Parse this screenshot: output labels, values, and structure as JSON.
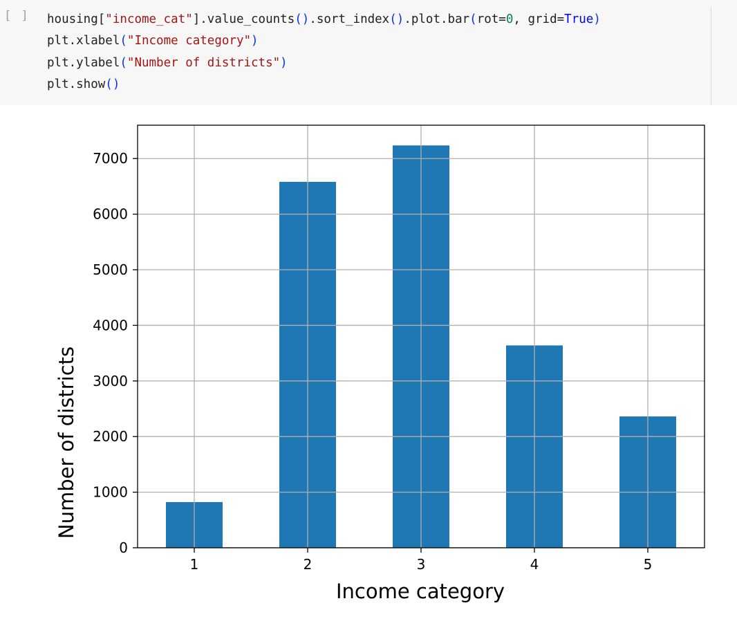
{
  "cell": {
    "run_indicator": "[ ]",
    "code_lines": [
      [
        {
          "t": "housing[",
          "c": "plain"
        },
        {
          "t": "\"income_cat\"",
          "c": "str"
        },
        {
          "t": "].value_counts",
          "c": "plain"
        },
        {
          "t": "()",
          "c": "paren"
        },
        {
          "t": ".sort_index",
          "c": "plain"
        },
        {
          "t": "()",
          "c": "paren"
        },
        {
          "t": ".plot.bar",
          "c": "plain"
        },
        {
          "t": "(",
          "c": "paren"
        },
        {
          "t": "rot=",
          "c": "plain"
        },
        {
          "t": "0",
          "c": "num"
        },
        {
          "t": ", grid=",
          "c": "plain"
        },
        {
          "t": "True",
          "c": "kw"
        },
        {
          "t": ")",
          "c": "paren"
        }
      ],
      [
        {
          "t": "plt.xlabel",
          "c": "plain"
        },
        {
          "t": "(",
          "c": "paren"
        },
        {
          "t": "\"Income category\"",
          "c": "str"
        },
        {
          "t": ")",
          "c": "paren"
        }
      ],
      [
        {
          "t": "plt.ylabel",
          "c": "plain"
        },
        {
          "t": "(",
          "c": "paren"
        },
        {
          "t": "\"Number of districts\"",
          "c": "str"
        },
        {
          "t": ")",
          "c": "paren"
        }
      ],
      [
        {
          "t": "plt.show",
          "c": "plain"
        },
        {
          "t": "()",
          "c": "paren"
        }
      ]
    ]
  },
  "colors": {
    "bar": "#1f77b4",
    "grid": "#b0b0b0",
    "axis": "#000000"
  },
  "chart_data": {
    "type": "bar",
    "categories": [
      "1",
      "2",
      "3",
      "4",
      "5"
    ],
    "values": [
      822,
      6581,
      7236,
      3639,
      2362
    ],
    "title": "",
    "xlabel": "Income category",
    "ylabel": "Number of districts",
    "ylim": [
      0,
      7600
    ],
    "yticks": [
      0,
      1000,
      2000,
      3000,
      4000,
      5000,
      6000,
      7000
    ],
    "grid": true,
    "legend": "none"
  }
}
